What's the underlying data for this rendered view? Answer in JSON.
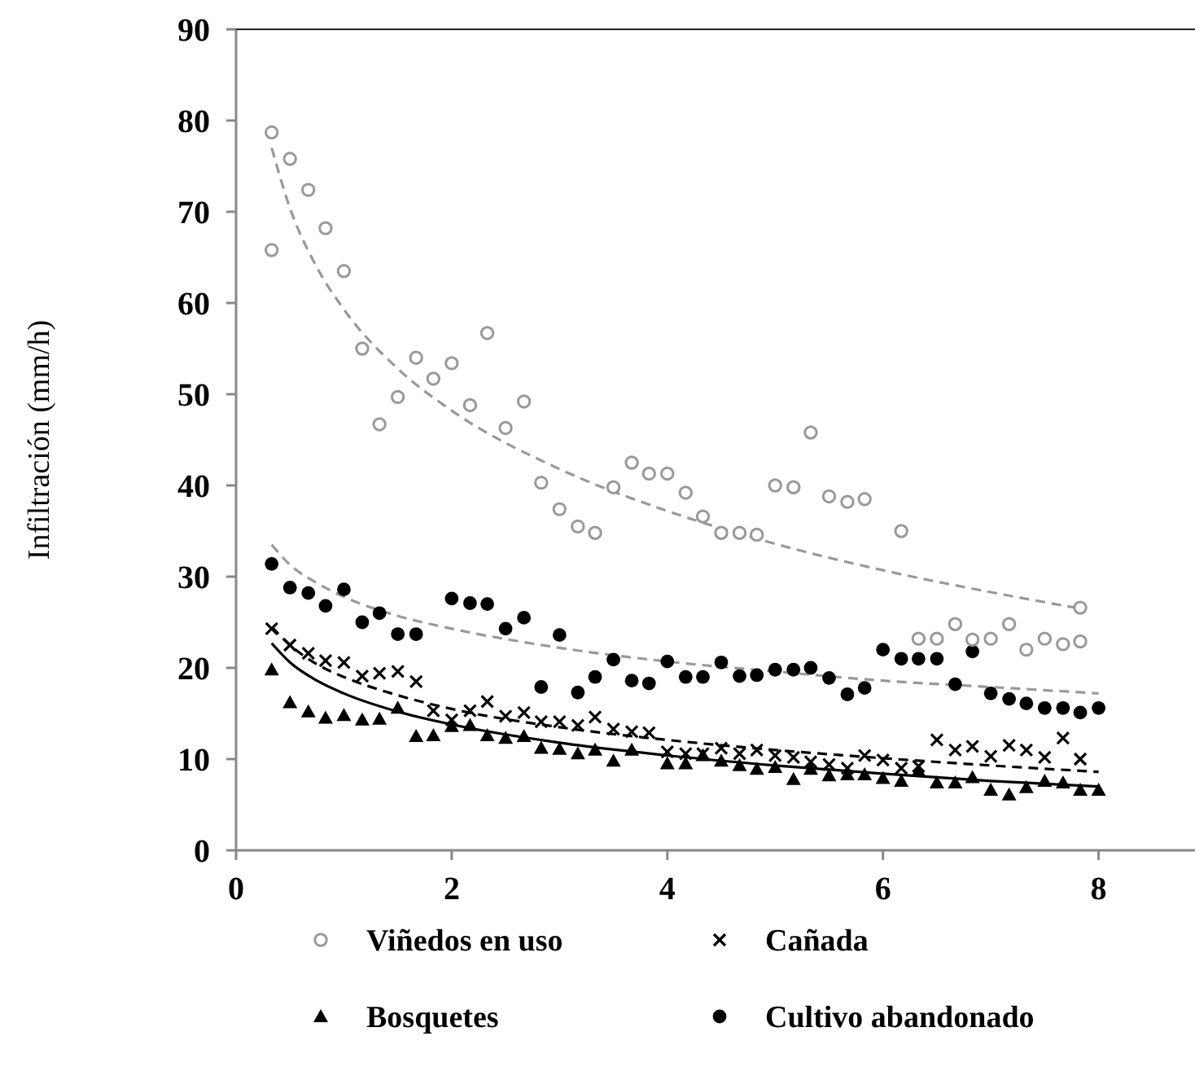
{
  "chart_data": {
    "type": "scatter",
    "ylabel": "Infiltración (mm/h)",
    "xlim": [
      0,
      9
    ],
    "xticks": [
      0,
      2,
      4,
      6,
      8
    ],
    "ylim": [
      0,
      90
    ],
    "yticks": [
      0,
      10,
      20,
      30,
      40,
      50,
      60,
      70,
      80,
      90
    ],
    "grid": false,
    "legend": "bottom",
    "series": [
      {
        "name": "Viñedos en uso",
        "color": "#999999",
        "marker": "circle",
        "x": [
          0.33,
          0.33,
          0.5,
          0.67,
          0.83,
          1.0,
          1.17,
          1.33,
          1.5,
          1.67,
          1.83,
          2.0,
          2.17,
          2.33,
          2.5,
          2.67,
          2.83,
          3.0,
          3.17,
          3.33,
          3.5,
          3.67,
          3.83,
          4.0,
          4.17,
          4.33,
          4.5,
          4.67,
          4.83,
          5.0,
          5.17,
          5.33,
          5.5,
          5.67,
          5.83,
          6.17,
          6.33,
          6.5,
          6.67,
          6.83,
          7.0,
          7.17,
          7.33,
          7.5,
          7.67,
          7.83,
          7.83
        ],
        "values": [
          78.7,
          65.8,
          75.8,
          72.4,
          68.2,
          63.5,
          55,
          46.7,
          49.7,
          54,
          51.7,
          53.4,
          48.8,
          56.7,
          46.3,
          49.2,
          40.3,
          37.4,
          35.5,
          34.8,
          39.8,
          42.5,
          41.3,
          41.3,
          39.2,
          36.6,
          34.8,
          34.8,
          34.6,
          40,
          39.8,
          45.8,
          38.8,
          38.2,
          38.5,
          35,
          23.2,
          23.2,
          24.8,
          23.1,
          23.2,
          24.8,
          22,
          23.2,
          22.6,
          26.6,
          22.9
        ]
      },
      {
        "name": "Cañada",
        "color": "#000000",
        "marker": "cross",
        "x": [
          0.33,
          0.5,
          0.67,
          0.83,
          1.0,
          1.17,
          1.33,
          1.5,
          1.67,
          1.83,
          2.0,
          2.17,
          2.33,
          2.5,
          2.67,
          2.83,
          3.0,
          3.17,
          3.33,
          3.5,
          3.67,
          3.83,
          4.0,
          4.17,
          4.33,
          4.5,
          4.67,
          4.83,
          5.0,
          5.17,
          5.33,
          5.5,
          5.67,
          5.83,
          6.0,
          6.17,
          6.33,
          6.5,
          6.67,
          6.83,
          7.0,
          7.17,
          7.33,
          7.5,
          7.67,
          7.83
        ],
        "values": [
          24.3,
          22.5,
          21.6,
          20.8,
          20.6,
          19.1,
          19.4,
          19.6,
          18.5,
          15.3,
          14.3,
          15.3,
          16.3,
          14.7,
          15.1,
          14.1,
          14.1,
          13.7,
          14.6,
          13.3,
          13,
          12.9,
          10.8,
          10.6,
          10.6,
          11.2,
          10.6,
          11,
          10.4,
          10.2,
          9.7,
          9.4,
          9,
          10.4,
          9.9,
          9,
          9.2,
          12.1,
          11,
          11.4,
          10.3,
          11.5,
          11,
          10.2,
          12.3,
          10
        ]
      },
      {
        "name": "Bosquetes",
        "color": "#000000",
        "marker": "triangle",
        "x": [
          0.33,
          0.5,
          0.67,
          0.83,
          1.0,
          1.17,
          1.33,
          1.5,
          1.67,
          1.83,
          2.0,
          2.17,
          2.33,
          2.5,
          2.67,
          2.83,
          3.0,
          3.17,
          3.33,
          3.5,
          3.67,
          4.0,
          4.17,
          4.33,
          4.5,
          4.67,
          4.83,
          5.0,
          5.17,
          5.33,
          5.5,
          5.67,
          5.83,
          6.0,
          6.17,
          6.33,
          6.5,
          6.67,
          6.83,
          7.0,
          7.17,
          7.33,
          7.5,
          7.67,
          7.83,
          8.0
        ],
        "values": [
          19.8,
          16.2,
          15.2,
          14.5,
          14.8,
          14.3,
          14.4,
          15.6,
          12.5,
          12.6,
          13.6,
          13.7,
          12.6,
          12.3,
          12.5,
          11.2,
          11.1,
          10.6,
          11,
          9.8,
          11,
          9.5,
          9.5,
          10.4,
          9.8,
          9.3,
          8.9,
          9.1,
          7.8,
          8.9,
          8.2,
          8.3,
          8.3,
          7.9,
          7.6,
          8.7,
          7.4,
          7.4,
          8,
          6.6,
          6.1,
          6.9,
          7.6,
          7.4,
          6.6,
          6.6
        ]
      },
      {
        "name": "Cultivo abandonado",
        "color": "#000000",
        "marker": "circle-filled",
        "x": [
          0.33,
          0.5,
          0.67,
          0.83,
          1.0,
          1.17,
          1.33,
          1.5,
          1.67,
          2.0,
          2.17,
          2.33,
          2.5,
          2.67,
          2.83,
          3.0,
          3.17,
          3.33,
          3.5,
          3.67,
          3.83,
          4.0,
          4.17,
          4.33,
          4.5,
          4.67,
          4.83,
          5.0,
          5.17,
          5.33,
          5.5,
          5.67,
          5.83,
          6.0,
          6.17,
          6.33,
          6.5,
          6.67,
          6.83,
          7.0,
          7.17,
          7.33,
          7.5,
          7.67,
          7.83,
          8.0
        ],
        "values": [
          31.4,
          28.8,
          28.2,
          26.8,
          28.6,
          25,
          26,
          23.7,
          23.7,
          27.6,
          27.1,
          27,
          24.3,
          25.5,
          17.9,
          23.6,
          17.3,
          19,
          20.9,
          18.6,
          18.3,
          20.7,
          19,
          19,
          20.6,
          19.1,
          19.2,
          19.8,
          19.8,
          20,
          18.9,
          17.1,
          17.8,
          22,
          21,
          21,
          21,
          18.2,
          21.8,
          17.2,
          16.6,
          16.1,
          15.6,
          15.6,
          15.1,
          15.6
        ]
      },
      {
        "type": "line",
        "color": "#999999",
        "line_style": "dashed",
        "x": [
          0.33,
          0.5,
          0.75,
          1,
          1.5,
          2,
          3,
          4,
          5,
          6,
          7,
          7.83
        ],
        "values": [
          77.0,
          70.4,
          63.9,
          59.3,
          52.8,
          48.2,
          41.8,
          37.2,
          33.6,
          30.7,
          28.3,
          26.5
        ]
      },
      {
        "type": "line",
        "color": "#999999",
        "line_style": "dashed",
        "x": [
          0.33,
          0.5,
          0.75,
          1,
          1.5,
          2,
          3,
          4,
          5,
          6,
          7,
          8
        ],
        "values": [
          33.5,
          31.3,
          29.3,
          27.8,
          25.7,
          24.3,
          22.2,
          20.7,
          19.6,
          18.6,
          17.9,
          17.2
        ]
      },
      {
        "type": "line",
        "color": "#000000",
        "line_style": "dashed",
        "x": [
          0.33,
          0.5,
          0.75,
          1,
          1.5,
          2,
          3,
          4,
          5,
          6,
          7,
          8
        ],
        "values": [
          24.5,
          22.5,
          20.4,
          19,
          17.0,
          15.5,
          13.5,
          12.1,
          11.0,
          10.1,
          9.3,
          8.6
        ]
      },
      {
        "type": "line",
        "color": "#000000",
        "line_style": "solid",
        "x": [
          0.33,
          0.5,
          0.75,
          1,
          1.5,
          2,
          3,
          4,
          5,
          6,
          7,
          8
        ],
        "values": [
          22.7,
          20.6,
          18.6,
          17.2,
          15.2,
          13.8,
          11.8,
          10.4,
          9.3,
          8.4,
          7.6,
          7.0
        ]
      }
    ]
  }
}
